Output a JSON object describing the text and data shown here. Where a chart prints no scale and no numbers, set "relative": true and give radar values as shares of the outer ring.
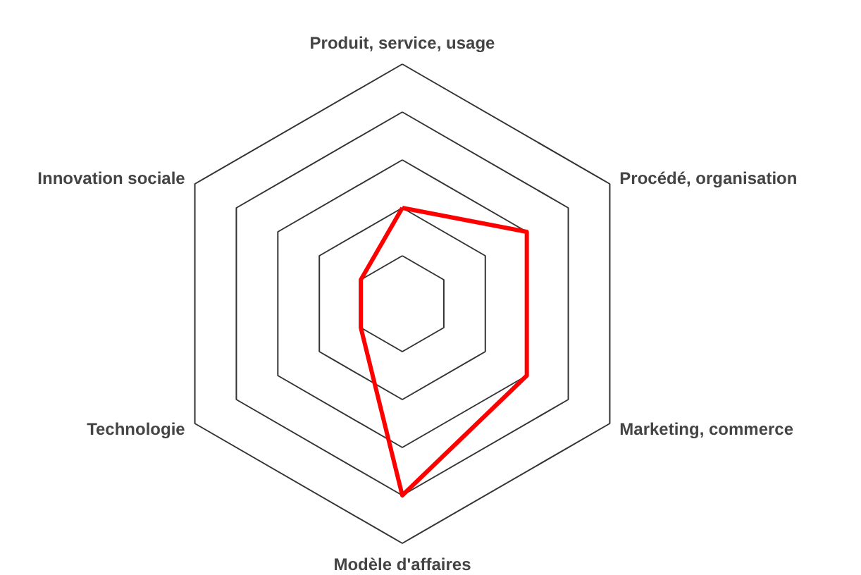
{
  "chart_data": {
    "type": "radar",
    "relative": true,
    "grid": true,
    "categories": [
      "Produit, service, usage",
      "Procédé, organisation",
      "Marketing, commerce",
      "Modèle d'affaires",
      "Technologie",
      "Innovation sociale"
    ],
    "series": [
      {
        "color": "#ff0000",
        "values": [
          0.4,
          0.6,
          0.6,
          0.8,
          0.2,
          0.2
        ]
      }
    ]
  }
}
